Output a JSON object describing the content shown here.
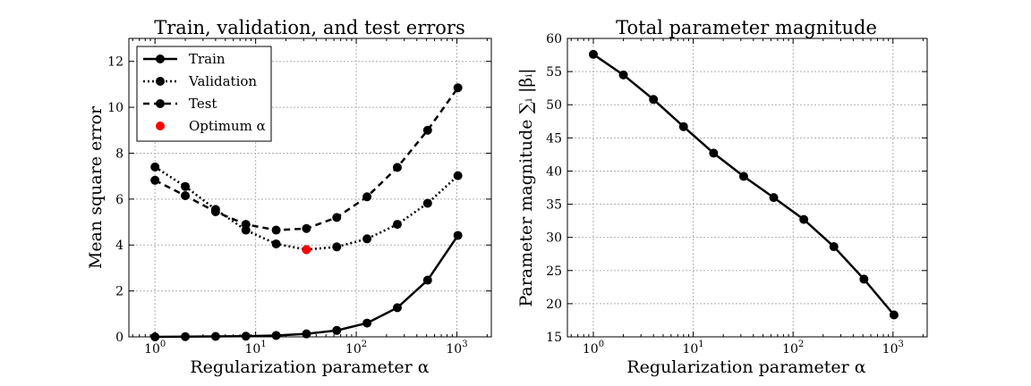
{
  "chart_data": [
    {
      "type": "line",
      "title": "Train, validation, and test errors",
      "xlabel": "Regularization parameter α",
      "ylabel": "Mean square error",
      "xscale": "log",
      "xlim": [
        0.55,
        2200
      ],
      "ylim": [
        0,
        13
      ],
      "x_ticks": [
        1,
        10,
        100,
        1000
      ],
      "x_tick_labels": [
        {
          "base": "10",
          "exp": "0"
        },
        {
          "base": "10",
          "exp": "1"
        },
        {
          "base": "10",
          "exp": "2"
        },
        {
          "base": "10",
          "exp": "3"
        }
      ],
      "y_ticks": [
        0,
        2,
        4,
        6,
        8,
        10,
        12
      ],
      "y_tick_labels": [
        "0",
        "2",
        "4",
        "6",
        "8",
        "10",
        "12"
      ],
      "grid": true,
      "legend_position": "top-left",
      "x": [
        1,
        2,
        4,
        8,
        16,
        32,
        64,
        128,
        256,
        512,
        1024
      ],
      "series": [
        {
          "name": "Train",
          "style": "solid",
          "color": "#000000",
          "values": [
            0.0,
            0.01,
            0.02,
            0.03,
            0.06,
            0.13,
            0.28,
            0.6,
            1.27,
            2.47,
            4.42
          ]
        },
        {
          "name": "Validation",
          "style": "dotted",
          "color": "#000000",
          "values": [
            7.4,
            6.55,
            5.55,
            4.65,
            4.05,
            3.8,
            3.92,
            4.27,
            4.9,
            5.82,
            7.02
          ]
        },
        {
          "name": "Test",
          "style": "dashed",
          "color": "#000000",
          "values": [
            6.82,
            6.15,
            5.45,
            4.9,
            4.65,
            4.72,
            5.2,
            6.1,
            7.38,
            9.0,
            10.85
          ]
        }
      ],
      "optimum": {
        "name": "Optimum α",
        "x": 32,
        "y": 3.8,
        "color": "#ff0000"
      }
    },
    {
      "type": "line",
      "title": "Total parameter magnitude",
      "xlabel": "Regularization parameter α",
      "ylabel": "Parameter magnitude ∑ᵢ |βᵢ|",
      "xscale": "log",
      "xlim": [
        0.55,
        2200
      ],
      "ylim": [
        15,
        60
      ],
      "x_ticks": [
        1,
        10,
        100,
        1000
      ],
      "x_tick_labels": [
        {
          "base": "10",
          "exp": "0"
        },
        {
          "base": "10",
          "exp": "1"
        },
        {
          "base": "10",
          "exp": "2"
        },
        {
          "base": "10",
          "exp": "3"
        }
      ],
      "y_ticks": [
        15,
        20,
        25,
        30,
        35,
        40,
        45,
        50,
        55,
        60
      ],
      "y_tick_labels": [
        "15",
        "20",
        "25",
        "30",
        "35",
        "40",
        "45",
        "50",
        "55",
        "60"
      ],
      "grid": true,
      "x": [
        1,
        2,
        4,
        8,
        16,
        32,
        64,
        128,
        256,
        512,
        1024
      ],
      "series": [
        {
          "style": "solid",
          "color": "#000000",
          "values": [
            57.6,
            54.5,
            50.8,
            46.7,
            42.7,
            39.2,
            36.0,
            32.7,
            28.6,
            23.7,
            18.3
          ]
        }
      ]
    }
  ]
}
